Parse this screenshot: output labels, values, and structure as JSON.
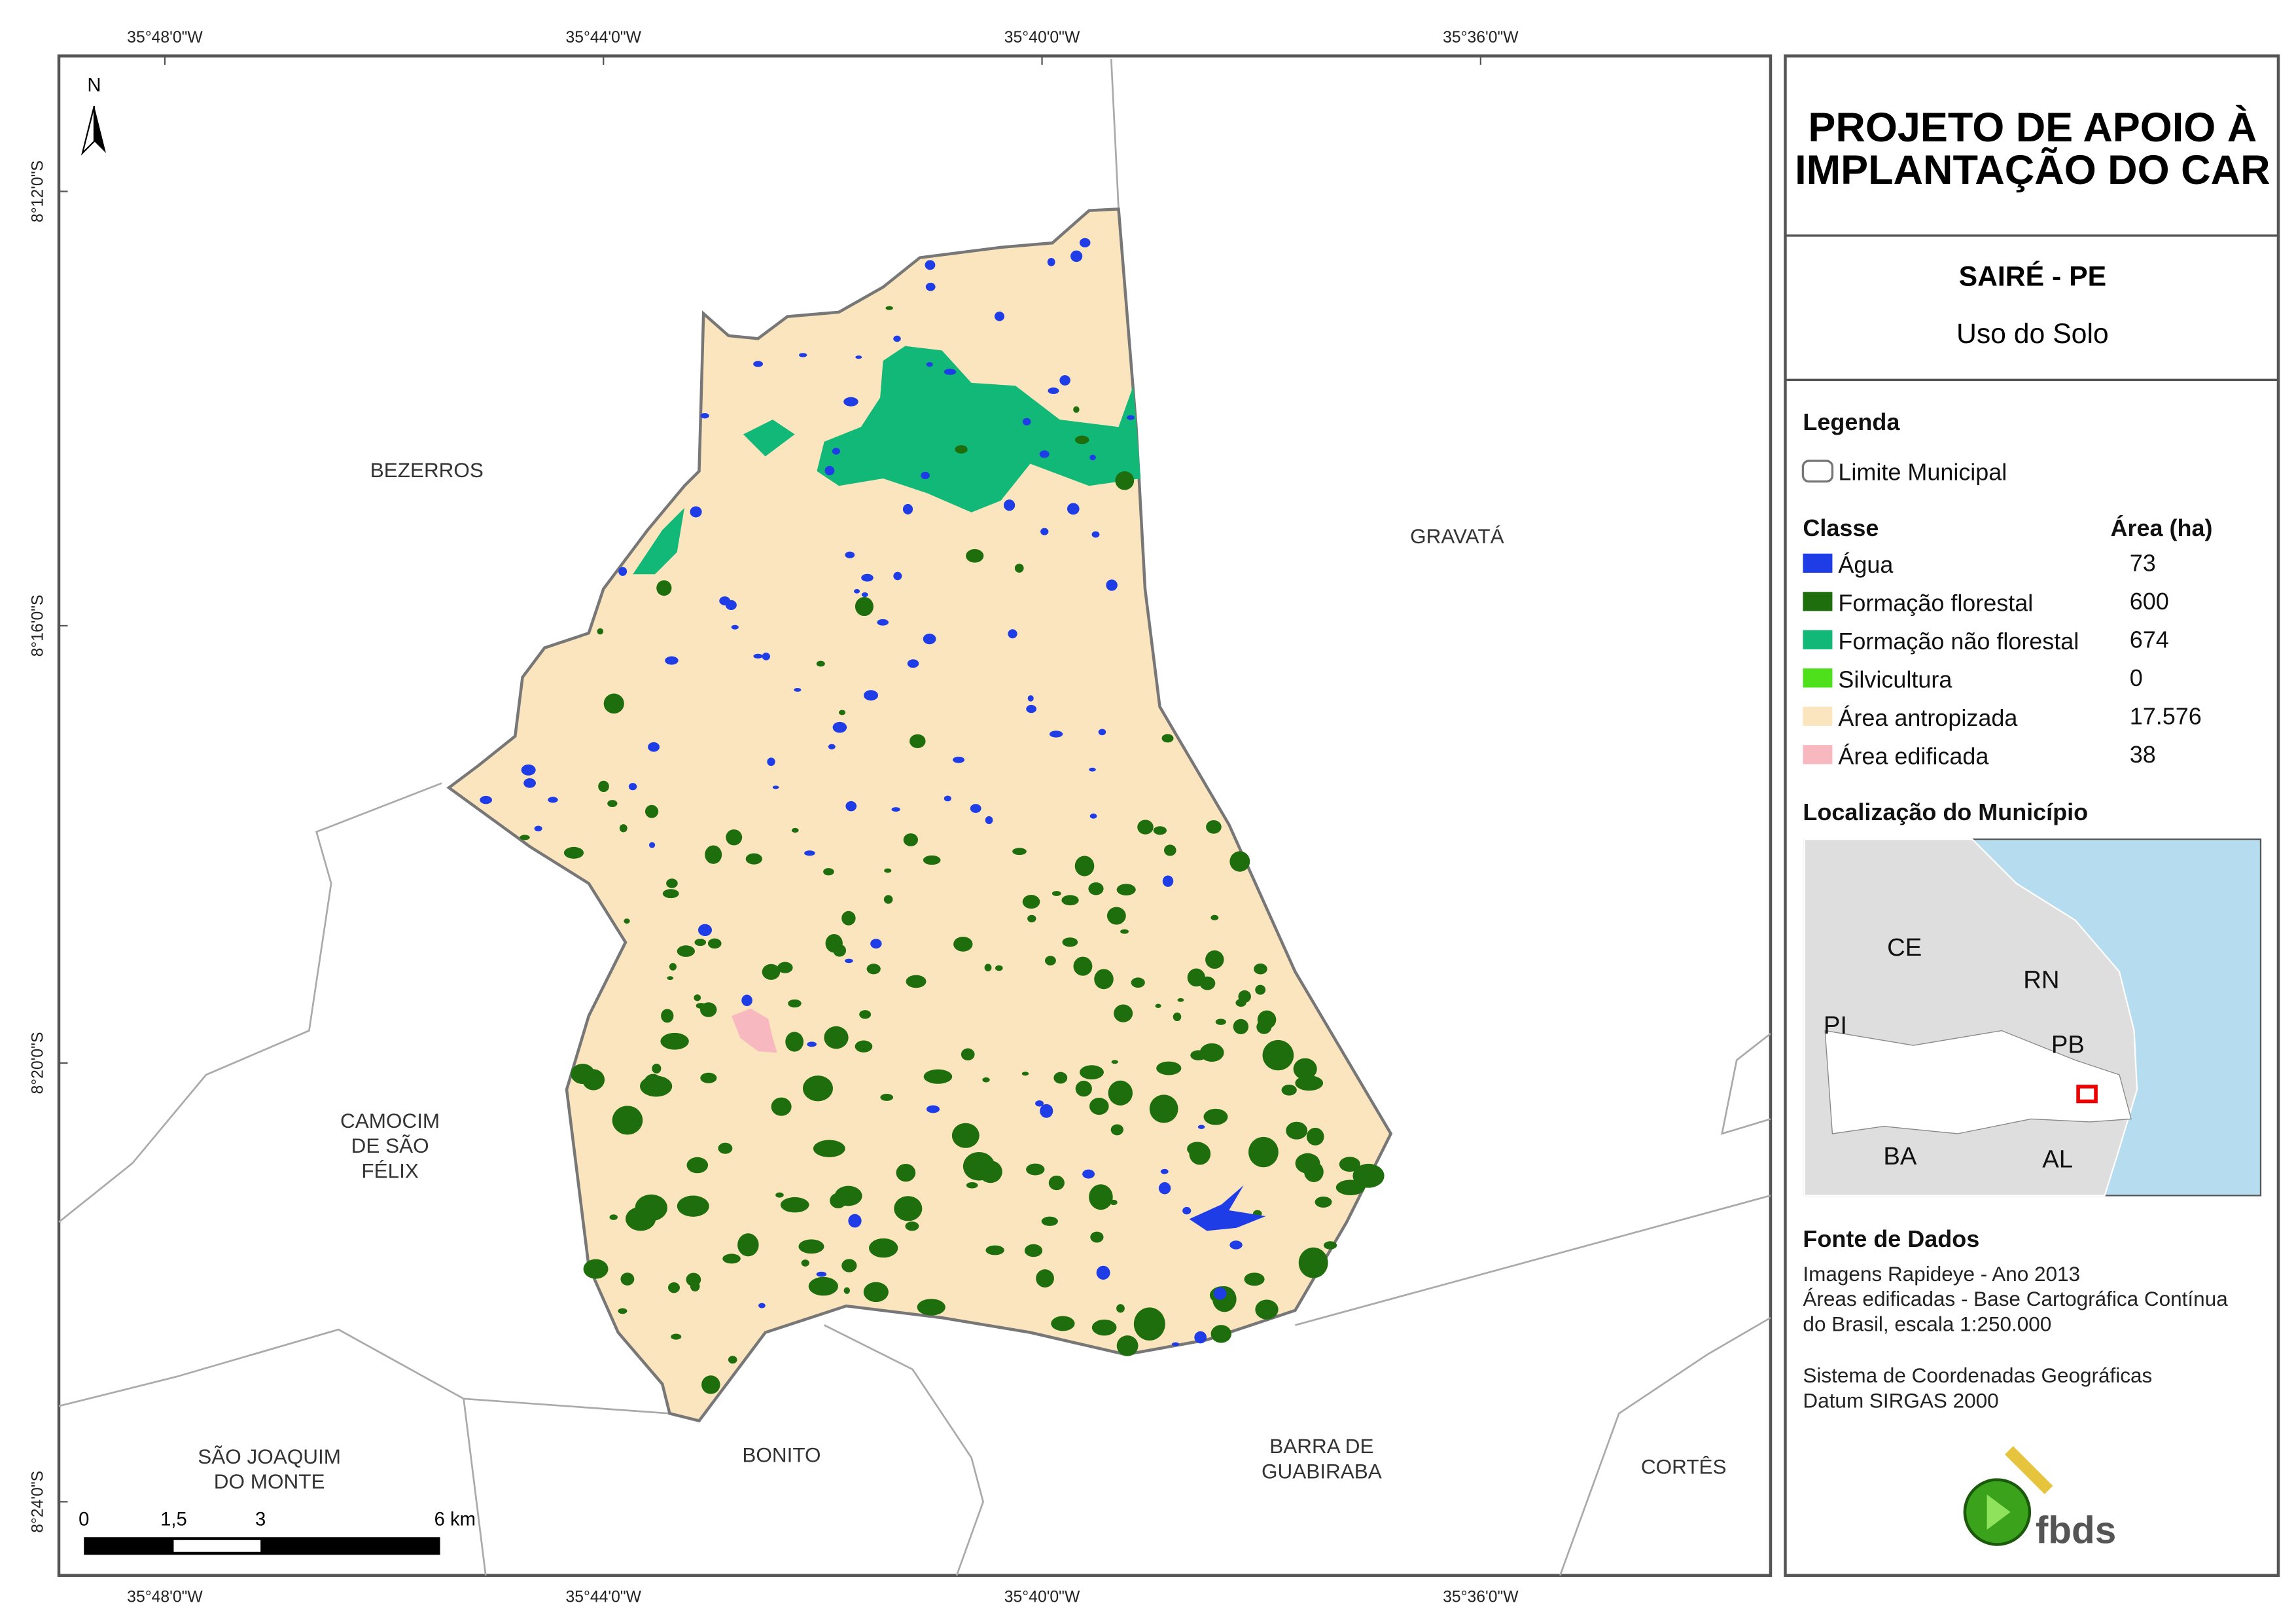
{
  "header": {
    "title_lines": [
      "PROJETO DE APOIO À",
      "IMPLANTAÇÃO DO CAR"
    ],
    "place": "SAIRÉ - PE",
    "theme": "Uso do Solo"
  },
  "legend": {
    "title": "Legenda",
    "boundary": "Limite Municipal",
    "class_header": "Classe",
    "area_header": "Área (ha)",
    "classes": [
      {
        "name": "Água",
        "area": "73",
        "color": "#1f3de6"
      },
      {
        "name": "Formação florestal",
        "area": "600",
        "color": "#1e6e0e"
      },
      {
        "name": "Formação não florestal",
        "area": "674",
        "color": "#12b877"
      },
      {
        "name": "Silvicultura",
        "area": "0",
        "color": "#4fe01c"
      },
      {
        "name": "Área antropizada",
        "area": "17.576",
        "color": "#fbe5bf"
      },
      {
        "name": "Área edificada",
        "area": "38",
        "color": "#f7b8c0"
      }
    ]
  },
  "location": {
    "title": "Localização do Município",
    "states": [
      "CE",
      "RN",
      "PI",
      "PB",
      "BA",
      "AL"
    ]
  },
  "sources": {
    "title": "Fonte de Dados",
    "lines": [
      "Imagens Rapideye - Ano 2013",
      "Áreas edificadas - Base Cartográfica Contínua",
      "do Brasil, escala 1:250.000",
      "Sistema de Coordenadas Geográficas",
      "Datum SIRGAS 2000"
    ]
  },
  "coords": {
    "longitudes": [
      "35°48'0\"W",
      "35°44'0\"W",
      "35°40'0\"W",
      "35°36'0\"W"
    ],
    "latitudes": [
      "8°12'0\"S",
      "8°16'0\"S",
      "8°20'0\"S",
      "8°24'0\"S"
    ]
  },
  "neighbors": [
    {
      "lines": [
        "BEZERROS"
      ]
    },
    {
      "lines": [
        "GRAVATÁ"
      ]
    },
    {
      "lines": [
        "CAMOCIM",
        "DE SÃO",
        "FÉLIX"
      ]
    },
    {
      "lines": [
        "SÃO JOAQUIM",
        "DO MONTE"
      ]
    },
    {
      "lines": [
        "BONITO"
      ]
    },
    {
      "lines": [
        "BARRA DE",
        "GUABIRABA"
      ]
    },
    {
      "lines": [
        "CORTÊS"
      ]
    }
  ],
  "north": "N",
  "scale": [
    "0",
    "1,5",
    "3",
    "6 km"
  ],
  "logo": "fbds"
}
